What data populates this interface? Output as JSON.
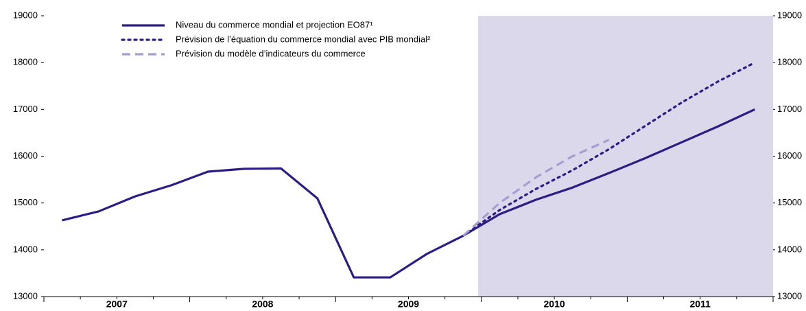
{
  "chart_data": {
    "type": "line",
    "categories": [
      null,
      null,
      null,
      null,
      null,
      null,
      null,
      null,
      null,
      null,
      null,
      null,
      null,
      null,
      null,
      null,
      null,
      null,
      null,
      null
    ],
    "x_groups": [
      "2007",
      "2008",
      "2009",
      "2010",
      "2011"
    ],
    "series": [
      {
        "name": "Niveau du commerce mondial et projection EO87¹",
        "color": "#2b1d84",
        "style": "solid",
        "values": [
          14630,
          14820,
          15140,
          15380,
          15670,
          15730,
          15740,
          15100,
          13410,
          13410,
          13910,
          14300,
          14760,
          15070,
          15330,
          15640,
          15960,
          16300,
          16640,
          17000
        ]
      },
      {
        "name": "Prévision de l’équation du commerce mondial avec PIB mondial²",
        "color": "#2b1d84",
        "style": "dotted",
        "values": [
          null,
          null,
          null,
          null,
          null,
          null,
          null,
          null,
          null,
          null,
          null,
          14300,
          14850,
          15300,
          15700,
          16150,
          16650,
          17150,
          17600,
          18000
        ]
      },
      {
        "name": "Prévision du modèle d’indicateurs du commerce",
        "color": "#a49fcf",
        "style": "dashed",
        "values": [
          null,
          null,
          null,
          null,
          null,
          null,
          null,
          null,
          null,
          null,
          null,
          14300,
          15000,
          15550,
          16000,
          16350,
          null,
          null,
          null,
          null
        ]
      }
    ],
    "ylim": [
      13000,
      19000
    ],
    "yticks": [
      13000,
      14000,
      15000,
      16000,
      17000,
      18000,
      19000
    ],
    "y2lim": [
      13000,
      19000
    ],
    "y2ticks": [
      13000,
      14000,
      15000,
      16000,
      17000,
      18000,
      19000
    ],
    "shade_color": "#dcd8ec"
  }
}
